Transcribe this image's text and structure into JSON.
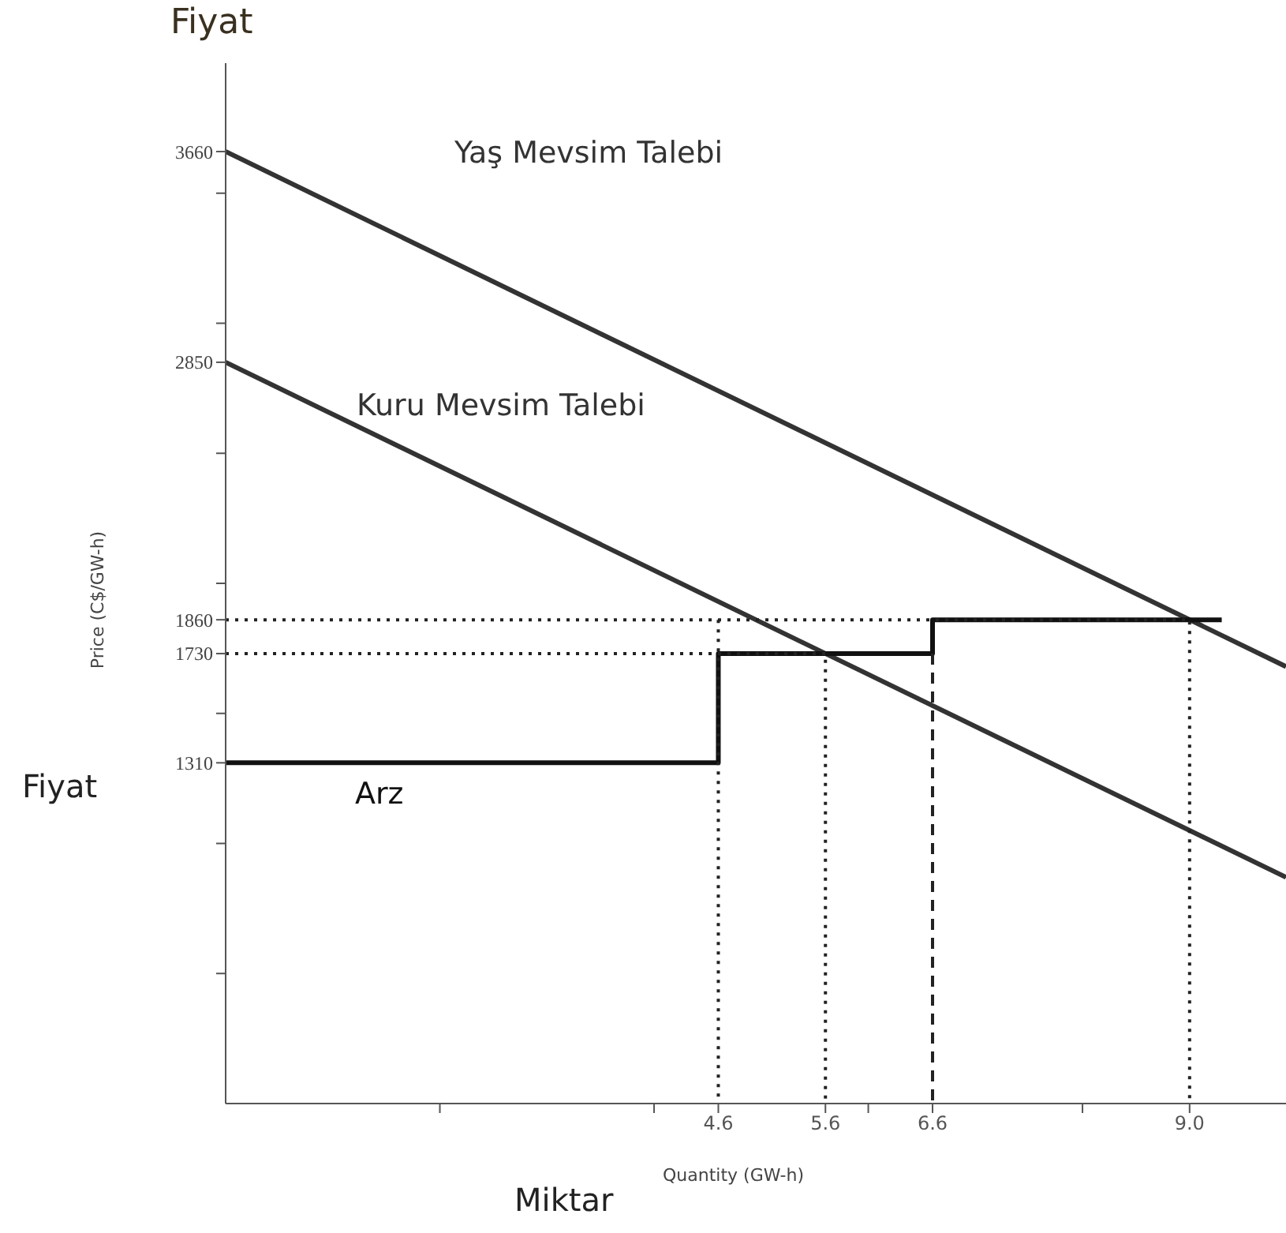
{
  "chart_data": {
    "type": "line",
    "xlabel": "Quantity (GW-h)",
    "ylabel": "Price (C$/GW-h)",
    "annotations": [
      "Fiyat",
      "Fiyat",
      "Miktar"
    ],
    "xlim": [
      0,
      9.9
    ],
    "ylim": [
      0,
      4000
    ],
    "xticks": [
      {
        "value": 2,
        "label": null
      },
      {
        "value": 4,
        "label": null
      },
      4.6,
      5.6,
      {
        "value": 6,
        "label": null
      },
      6.6,
      {
        "value": 8,
        "label": null
      },
      {
        "value": 9,
        "label": "9.0"
      }
    ],
    "yticks": [
      {
        "value": 500,
        "label": null
      },
      {
        "value": 1000,
        "label": null
      },
      1310,
      {
        "value": 1500,
        "label": null
      },
      1730,
      1860,
      {
        "value": 2000,
        "label": null
      },
      {
        "value": 2500,
        "label": null
      },
      2850,
      {
        "value": 3000,
        "label": null
      },
      {
        "value": 3500,
        "label": null
      },
      3660
    ],
    "grid": false,
    "legend": false,
    "marker": "none",
    "series": [
      {
        "name": "Yaş Mevsim Talebi",
        "color": "#333333",
        "x": [
          0,
          9.9
        ],
        "values": [
          3660,
          1680
        ]
      },
      {
        "name": "Kuru Mevsim Talebi",
        "color": "#333333",
        "x": [
          0,
          9.9
        ],
        "values": [
          2850,
          870
        ]
      },
      {
        "name": "Arz",
        "type": "step",
        "color": "#111111",
        "x": [
          0,
          4.6,
          6.6,
          9.3
        ],
        "values": [
          1310,
          1730,
          1860,
          1860
        ]
      },
      {
        "color": "#222222",
        "line_style": "dotted",
        "x": [
          0,
          9.0,
          9.0
        ],
        "values": [
          1860,
          1860,
          0
        ]
      },
      {
        "color": "#222222",
        "line_style": "dotted",
        "x": [
          0,
          5.6,
          5.6
        ],
        "values": [
          1730,
          1730,
          0
        ]
      },
      {
        "color": "#222222",
        "line_style": "dotted",
        "x": [
          4.6,
          4.6
        ],
        "values": [
          1860,
          0
        ]
      },
      {
        "color": "#222222",
        "line_style": "dashed",
        "x": [
          6.6,
          6.6
        ],
        "values": [
          1730,
          0
        ]
      }
    ]
  }
}
